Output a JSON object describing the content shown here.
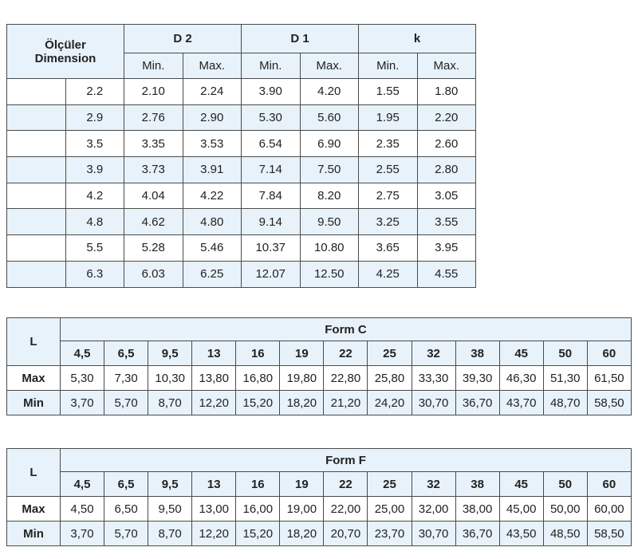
{
  "dimension_table": {
    "header_label_line1": "Ölçüler",
    "header_label_line2": "Dimension",
    "groups": [
      "D 2",
      "D 1",
      "k"
    ],
    "sub_headers": [
      "Min.",
      "Max.",
      "Min.",
      "Max.",
      "Min.",
      "Max."
    ],
    "rows": [
      {
        "size": "2.2",
        "values": [
          "2.10",
          "2.24",
          "3.90",
          "4.20",
          "1.55",
          "1.80"
        ]
      },
      {
        "size": "2.9",
        "values": [
          "2.76",
          "2.90",
          "5.30",
          "5.60",
          "1.95",
          "2.20"
        ]
      },
      {
        "size": "3.5",
        "values": [
          "3.35",
          "3.53",
          "6.54",
          "6.90",
          "2.35",
          "2.60"
        ]
      },
      {
        "size": "3.9",
        "values": [
          "3.73",
          "3.91",
          "7.14",
          "7.50",
          "2.55",
          "2.80"
        ]
      },
      {
        "size": "4.2",
        "values": [
          "4.04",
          "4.22",
          "7.84",
          "8.20",
          "2.75",
          "3.05"
        ]
      },
      {
        "size": "4.8",
        "values": [
          "4.62",
          "4.80",
          "9.14",
          "9.50",
          "3.25",
          "3.55"
        ]
      },
      {
        "size": "5.5",
        "values": [
          "5.28",
          "5.46",
          "10.37",
          "10.80",
          "3.65",
          "3.95"
        ]
      },
      {
        "size": "6.3",
        "values": [
          "6.03",
          "6.25",
          "12.07",
          "12.50",
          "4.25",
          "4.55"
        ]
      }
    ]
  },
  "form_c": {
    "l_label": "L",
    "title": "Form C",
    "lengths": [
      "4,5",
      "6,5",
      "9,5",
      "13",
      "16",
      "19",
      "22",
      "25",
      "32",
      "38",
      "45",
      "50",
      "60"
    ],
    "max_label": "Max",
    "max_values": [
      "5,30",
      "7,30",
      "10,30",
      "13,80",
      "16,80",
      "19,80",
      "22,80",
      "25,80",
      "33,30",
      "39,30",
      "46,30",
      "51,30",
      "61,50"
    ],
    "min_label": "Min",
    "min_values": [
      "3,70",
      "5,70",
      "8,70",
      "12,20",
      "15,20",
      "18,20",
      "21,20",
      "24,20",
      "30,70",
      "36,70",
      "43,70",
      "48,70",
      "58,50"
    ]
  },
  "form_f": {
    "l_label": "L",
    "title": "Form F",
    "lengths": [
      "4,5",
      "6,5",
      "9,5",
      "13",
      "16",
      "19",
      "22",
      "25",
      "32",
      "38",
      "45",
      "50",
      "60"
    ],
    "max_label": "Max",
    "max_values": [
      "4,50",
      "6,50",
      "9,50",
      "13,00",
      "16,00",
      "19,00",
      "22,00",
      "25,00",
      "32,00",
      "38,00",
      "45,00",
      "50,00",
      "60,00"
    ],
    "min_label": "Min",
    "min_values": [
      "3,70",
      "5,70",
      "8,70",
      "12,20",
      "15,20",
      "18,20",
      "20,70",
      "23,70",
      "30,70",
      "36,70",
      "43,50",
      "48,50",
      "58,50"
    ]
  },
  "colors": {
    "header_fill": "#e8f2fa",
    "border": "#4a4a4a"
  }
}
